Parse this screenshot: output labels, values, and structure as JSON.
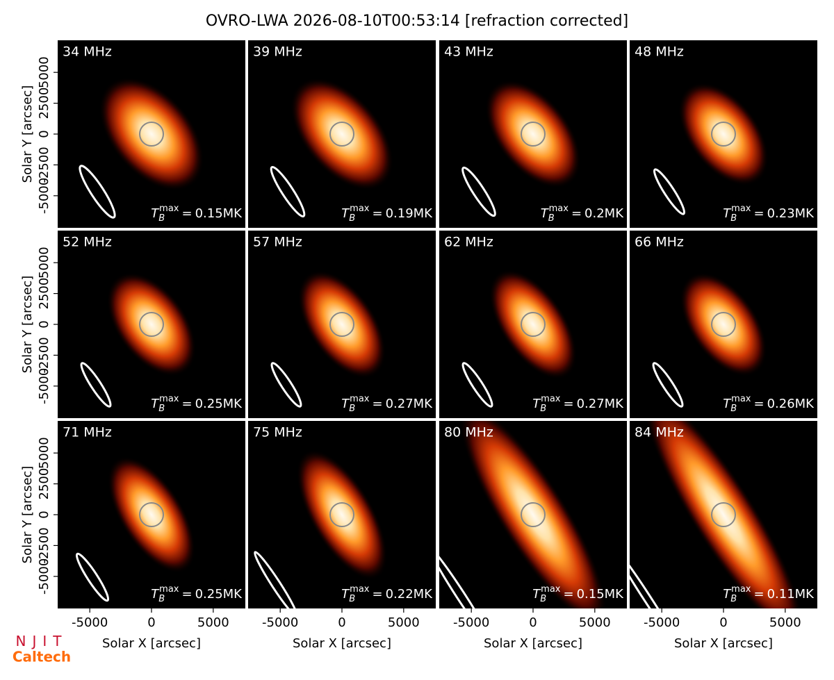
{
  "chart_data": {
    "type": "image",
    "title": "OVRO-LWA 2026-08-10T00:53:14 [refraction corrected]",
    "categories": [
      "34 MHz",
      "39 MHz",
      "43 MHz",
      "48 MHz",
      "52 MHz",
      "57 MHz",
      "62 MHz",
      "66 MHz",
      "71 MHz",
      "75 MHz",
      "80 MHz",
      "84 MHz"
    ],
    "values": [
      0.15,
      0.19,
      0.2,
      0.23,
      0.25,
      0.27,
      0.27,
      0.26,
      0.25,
      0.22,
      0.15,
      0.11
    ],
    "value_labels": [
      "0.15MK",
      "0.19MK",
      "0.2MK",
      "0.23MK",
      "0.25MK",
      "0.27MK",
      "0.27MK",
      "0.26MK",
      "0.25MK",
      "0.22MK",
      "0.15MK",
      "0.11MK"
    ],
    "tb_symbol": "T",
    "tb_subscript": "B",
    "tb_superscript": "max",
    "tb_equals": "=",
    "xlabel": "Solar X [arcsec]",
    "ylabel": "Solar Y [arcsec]",
    "xlim": [
      -7600,
      7600
    ],
    "ylim": [
      -7600,
      7600
    ],
    "xticks": [
      -5000,
      0,
      5000
    ],
    "yticks": [
      -5000,
      -2500,
      0,
      2500,
      5000
    ],
    "logos": [
      "NJIT",
      "Caltech"
    ]
  }
}
